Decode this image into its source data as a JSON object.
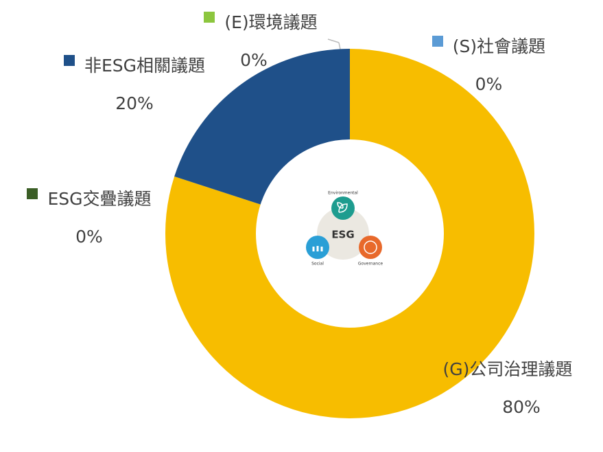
{
  "chart_data": {
    "type": "donut",
    "categories": [
      "(E)環境議題",
      "(S)社會議題",
      "(G)公司治理議題",
      "ESG交疊議題",
      "非ESG相關議題"
    ],
    "values": [
      0,
      0,
      80,
      0,
      20
    ],
    "value_labels": [
      "0%",
      "0%",
      "80%",
      "0%",
      "20%"
    ],
    "colors": [
      "#8cc63e",
      "#5b9bd5",
      "#f7bd00",
      "#3b5e26",
      "#1f5089"
    ],
    "center_logo": {
      "title": "ESG",
      "top": "Environmental",
      "left": "Social",
      "right": "Governance"
    }
  }
}
